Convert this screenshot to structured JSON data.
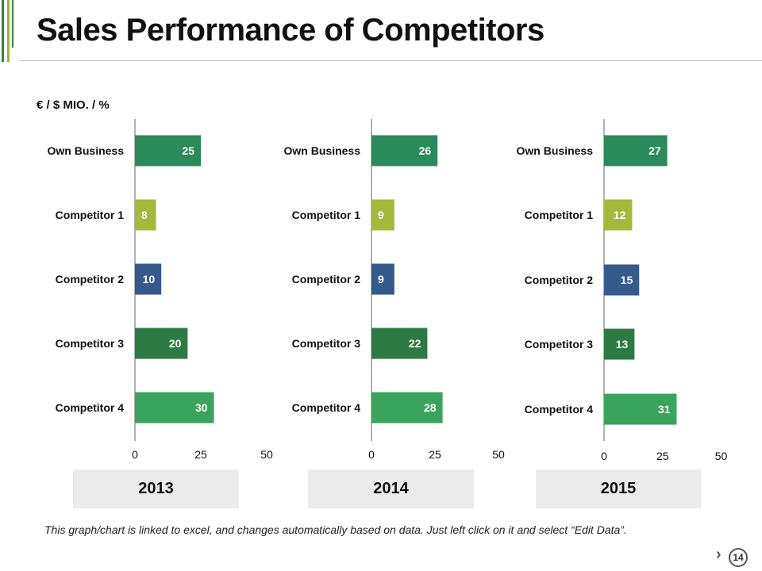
{
  "slide": {
    "title": "Sales Performance of Competitors",
    "unit_label": "€ / $ MIO. / %",
    "footnote": "This graph/chart is linked to excel, and changes automatically based on data. Just left click on it and select “Edit Data”.",
    "page_number": "14",
    "next_arrow": "›"
  },
  "colors": {
    "accent_dark": "#2f8a3c",
    "accent_light": "#9ab830",
    "own_business": "#2a8a5a",
    "competitor_1": "#a3b93a",
    "competitor_2": "#355a8c",
    "competitor_3": "#2d7a45",
    "competitor_4": "#3aa35c"
  },
  "chart_data": [
    {
      "type": "bar",
      "orientation": "horizontal",
      "title": "2013",
      "categories": [
        "Own Business",
        "Competitor 1",
        "Competitor 2",
        "Competitor 3",
        "Competitor 4"
      ],
      "values": [
        25,
        8,
        10,
        20,
        30
      ],
      "xlim": [
        0,
        50
      ],
      "xticks": [
        "0",
        "25",
        "50"
      ]
    },
    {
      "type": "bar",
      "orientation": "horizontal",
      "title": "2014",
      "categories": [
        "Own Business",
        "Competitor 1",
        "Competitor 2",
        "Competitor 3",
        "Competitor 4"
      ],
      "values": [
        26,
        9,
        9,
        22,
        28
      ],
      "xlim": [
        0,
        50
      ],
      "xticks": [
        "0",
        "25",
        "50"
      ]
    },
    {
      "type": "bar",
      "orientation": "horizontal",
      "title": "2015",
      "categories": [
        "Own Business",
        "Competitor 1",
        "Competitor 2",
        "Competitor 3",
        "Competitor 4"
      ],
      "values": [
        27,
        12,
        15,
        13,
        31
      ],
      "xlim": [
        0,
        50
      ],
      "xticks": [
        "0",
        "25",
        "50"
      ]
    }
  ]
}
